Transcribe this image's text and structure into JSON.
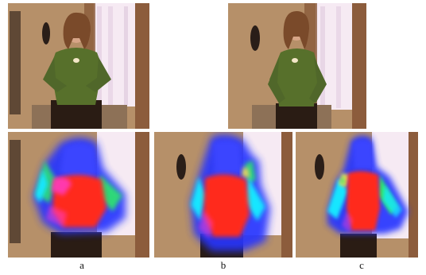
{
  "figure": {
    "captions": [
      "a",
      "b",
      "c"
    ]
  },
  "colors": {
    "wall": "#c6a078",
    "curtain": "#f3e6ef",
    "shirt": "#57702b",
    "pants": "#2a1c14",
    "heat_core": "#ff2a1a",
    "heat_limb": "#19e6ff",
    "heat_edge": "#2535ff"
  }
}
